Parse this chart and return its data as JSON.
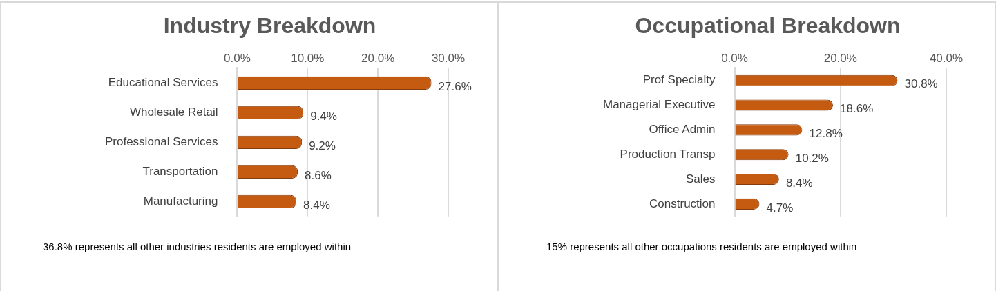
{
  "chart_data": [
    {
      "type": "bar",
      "orientation": "horizontal",
      "title": "Industry Breakdown",
      "categories": [
        "Educational Services",
        "Wholesale Retail",
        "Professional Services",
        "Transportation",
        "Manufacturing"
      ],
      "values": [
        27.6,
        9.4,
        9.2,
        8.6,
        8.4
      ],
      "color": "#c55a11",
      "xlim": [
        0,
        30
      ],
      "xticks": [
        {
          "value": 0,
          "label": "0.0%"
        },
        {
          "value": 10,
          "label": "10.0%"
        },
        {
          "value": 20,
          "label": "20.0%"
        },
        {
          "value": 30,
          "label": "30.0%"
        }
      ],
      "value_labels": [
        "27.6%",
        "9.4%",
        "9.2%",
        "8.6%",
        "8.4%"
      ],
      "grid": "x",
      "annotations": [
        "36.8% represents all other industries residents are employed within"
      ]
    },
    {
      "type": "bar",
      "orientation": "horizontal",
      "title": "Occupational Breakdown",
      "categories": [
        "Prof Specialty",
        "Managerial Executive",
        "Office Admin",
        "Production Transp",
        "Sales",
        "Construction"
      ],
      "values": [
        30.8,
        18.6,
        12.8,
        10.2,
        8.4,
        4.7
      ],
      "color": "#c55a11",
      "xlim": [
        0,
        40
      ],
      "xticks": [
        {
          "value": 0,
          "label": "0.0%"
        },
        {
          "value": 20,
          "label": "20.0%"
        },
        {
          "value": 40,
          "label": "40.0%"
        }
      ],
      "value_labels": [
        "30.8%",
        "18.6%",
        "12.8%",
        "10.2%",
        "8.4%",
        "4.7%"
      ],
      "grid": "x",
      "annotations": [
        "15% represents all other occupations residents are employed within"
      ]
    }
  ]
}
